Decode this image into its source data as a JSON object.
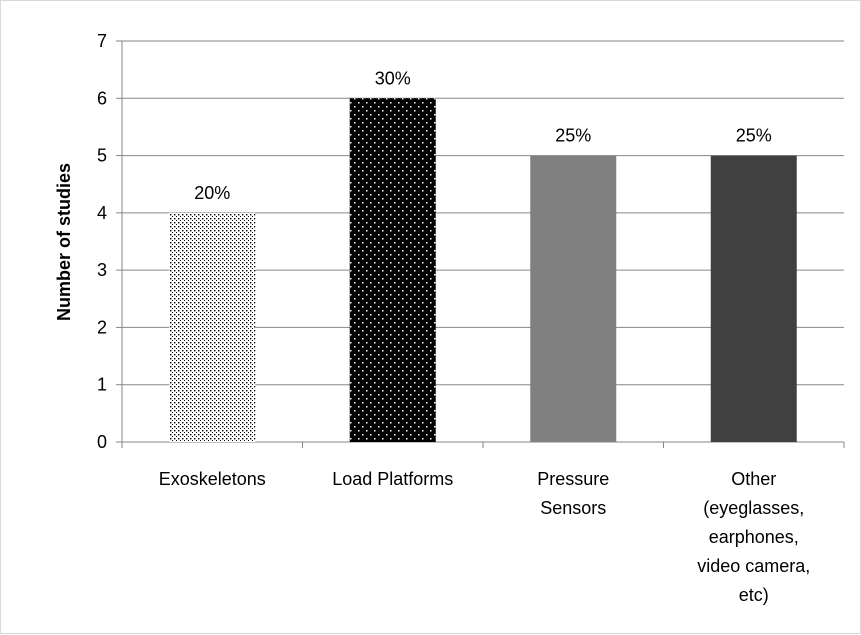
{
  "chart_data": {
    "type": "bar",
    "categories": [
      [
        "Exoskeletons"
      ],
      [
        "Load Platforms"
      ],
      [
        "Pressure",
        "Sensors"
      ],
      [
        "Other",
        "(eyeglasses,",
        "earphones,",
        "video camera,",
        "etc)"
      ]
    ],
    "values": [
      4,
      6,
      5,
      5
    ],
    "data_labels": [
      "20%",
      "30%",
      "25%",
      "25%"
    ],
    "title": "",
    "xlabel": "",
    "ylabel": "Number of studies",
    "ylim": [
      0,
      7
    ],
    "yticks": [
      0,
      1,
      2,
      3,
      4,
      5,
      6,
      7
    ],
    "grid": true,
    "legend": "none",
    "bar_styles": [
      {
        "fill": "#ffffff",
        "pattern": "fine-dots",
        "dot_color": "#000000"
      },
      {
        "fill": "#000000",
        "pattern": "sparse-dots",
        "dot_color": "#ffffff"
      },
      {
        "fill": "#808080",
        "pattern": "solid"
      },
      {
        "fill": "#404040",
        "pattern": "solid"
      }
    ],
    "gridline_color": "#868686",
    "axis_color": "#868686"
  }
}
